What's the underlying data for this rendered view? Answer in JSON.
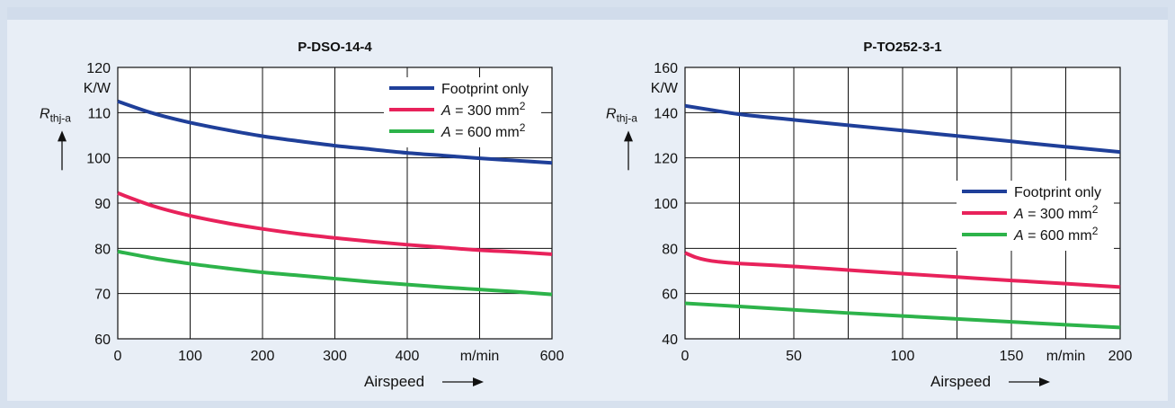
{
  "chart_data": [
    {
      "type": "line",
      "title": "P-DSO-14-4",
      "ylabel_main": "R",
      "ylabel_sub": "thj-a",
      "yunit": "K/W",
      "xlabel": "Airspeed",
      "xunit": "m/min",
      "xlim": [
        0,
        600
      ],
      "ylim": [
        60,
        120
      ],
      "xticks": [
        0,
        100,
        200,
        300,
        400,
        500,
        600
      ],
      "xtick_labels": [
        "0",
        "100",
        "200",
        "300",
        "400",
        "m/min",
        "600"
      ],
      "yticks": [
        60,
        70,
        80,
        90,
        100,
        110,
        120
      ],
      "ytick_labels": [
        "60",
        "70",
        "80",
        "90",
        "100",
        "110",
        "120"
      ],
      "grid": true,
      "legend_position": "top-right",
      "series": [
        {
          "name": "Footprint only",
          "color": "#1f3f99",
          "x": [
            0,
            50,
            100,
            150,
            200,
            250,
            300,
            350,
            400,
            450,
            500,
            550,
            600
          ],
          "y": [
            112.5,
            109.8,
            107.8,
            106.2,
            104.8,
            103.7,
            102.7,
            101.9,
            101.1,
            100.5,
            99.9,
            99.4,
            98.9
          ]
        },
        {
          "name": "A = 300 mm2",
          "color": "#e8225b",
          "x": [
            0,
            50,
            100,
            150,
            200,
            250,
            300,
            350,
            400,
            450,
            500,
            550,
            600
          ],
          "y": [
            92.2,
            89.3,
            87.2,
            85.6,
            84.3,
            83.2,
            82.3,
            81.5,
            80.8,
            80.2,
            79.6,
            79.2,
            78.7
          ]
        },
        {
          "name": "A = 600 mm2",
          "color": "#2db34a",
          "x": [
            0,
            50,
            100,
            150,
            200,
            250,
            300,
            350,
            400,
            450,
            500,
            550,
            600
          ],
          "y": [
            79.3,
            77.8,
            76.6,
            75.6,
            74.7,
            74.0,
            73.3,
            72.6,
            72.0,
            71.4,
            70.9,
            70.4,
            69.8
          ]
        }
      ]
    },
    {
      "type": "line",
      "title": "P-TO252-3-1",
      "ylabel_main": "R",
      "ylabel_sub": "thj-a",
      "yunit": "K/W",
      "xlabel": "Airspeed",
      "xunit": "m/min",
      "xlim": [
        0,
        200
      ],
      "ylim": [
        40,
        160
      ],
      "xticks": [
        0,
        25,
        50,
        75,
        100,
        125,
        150,
        175,
        200
      ],
      "xtick_labels": [
        "0",
        "",
        "50",
        "",
        "100",
        "",
        "150",
        "m/min",
        "200"
      ],
      "yticks": [
        40,
        60,
        80,
        100,
        120,
        140,
        160
      ],
      "ytick_labels": [
        "40",
        "60",
        "80",
        "100",
        "120",
        "140",
        "160"
      ],
      "grid": true,
      "legend_position": "right",
      "series": [
        {
          "name": "Footprint only",
          "color": "#1f3f99",
          "x": [
            0,
            10,
            25,
            50,
            75,
            100,
            125,
            150,
            175,
            200
          ],
          "y": [
            143,
            141.5,
            139.3,
            136.8,
            134.4,
            132.1,
            129.7,
            127.3,
            124.9,
            122.6
          ]
        },
        {
          "name": "A = 300 mm2",
          "color": "#e8225b",
          "x": [
            0,
            5,
            10,
            15,
            25,
            50,
            75,
            100,
            125,
            150,
            175,
            200
          ],
          "y": [
            78,
            76,
            74.8,
            74.1,
            73.3,
            72,
            70.4,
            68.8,
            67.3,
            65.8,
            64.4,
            62.9
          ]
        },
        {
          "name": "A = 600 mm2",
          "color": "#2db34a",
          "x": [
            0,
            25,
            50,
            75,
            100,
            125,
            150,
            175,
            200
          ],
          "y": [
            55.7,
            54.3,
            52.8,
            51.4,
            50.1,
            48.8,
            47.5,
            46.2,
            45
          ]
        }
      ]
    }
  ]
}
